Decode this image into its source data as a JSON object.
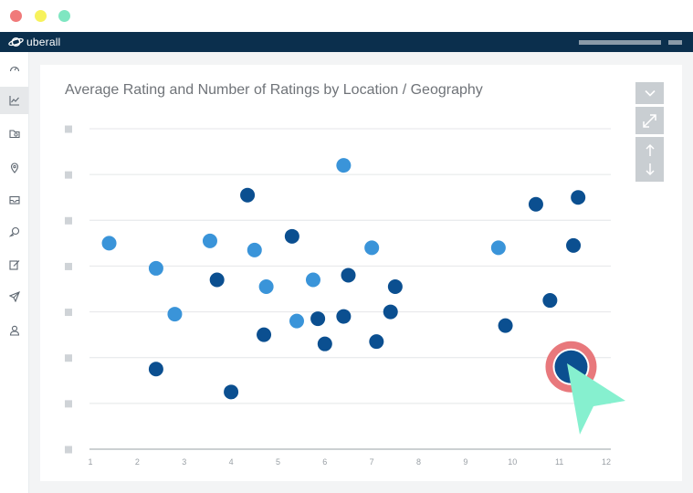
{
  "app": {
    "brand": "uberall",
    "window_dots": [
      "red",
      "yellow",
      "green"
    ],
    "colors": {
      "topbar": "#0b2f4d",
      "series_light": "#3a94d9",
      "series_dark": "#0b4f90",
      "highlight_ring": "#e8787c",
      "cursor": "#86f0cf"
    }
  },
  "sidebar": {
    "items": [
      {
        "icon": "dashboard-icon",
        "active": false
      },
      {
        "icon": "analytics-icon",
        "active": true
      },
      {
        "icon": "location-folder-icon",
        "active": false
      },
      {
        "icon": "map-pin-icon",
        "active": false
      },
      {
        "icon": "inbox-icon",
        "active": false
      },
      {
        "icon": "chat-icon",
        "active": false
      },
      {
        "icon": "edit-icon",
        "active": false
      },
      {
        "icon": "send-icon",
        "active": false
      },
      {
        "icon": "user-icon",
        "active": false
      }
    ]
  },
  "toolbar": {
    "buttons": [
      {
        "icon": "chevron-down-icon"
      },
      {
        "icon": "expand-icon"
      },
      {
        "icon": "resize-vertical-icon"
      }
    ]
  },
  "chart_data": {
    "type": "scatter",
    "title": "Average Rating and Number of Ratings by Location / Geography",
    "xlabel": "",
    "ylabel": "",
    "xlim": [
      1,
      12
    ],
    "x_ticks": [
      "1",
      "2",
      "3",
      "4",
      "5",
      "6",
      "7",
      "8",
      "9",
      "10",
      "11",
      "12"
    ],
    "ylim": [
      0,
      7
    ],
    "y_ticks": 8,
    "grid": true,
    "series": [
      {
        "color": "#3a94d9",
        "points": [
          {
            "x": 1.4,
            "y": 4.5
          },
          {
            "x": 2.4,
            "y": 3.95
          },
          {
            "x": 2.8,
            "y": 2.95
          },
          {
            "x": 3.55,
            "y": 4.55
          },
          {
            "x": 4.5,
            "y": 4.35
          },
          {
            "x": 4.75,
            "y": 3.55
          },
          {
            "x": 5.4,
            "y": 2.8
          },
          {
            "x": 5.75,
            "y": 3.7
          },
          {
            "x": 6.4,
            "y": 6.2
          },
          {
            "x": 7.0,
            "y": 4.4
          },
          {
            "x": 9.7,
            "y": 4.4
          }
        ]
      },
      {
        "color": "#0b4f90",
        "points": [
          {
            "x": 2.4,
            "y": 1.75
          },
          {
            "x": 3.7,
            "y": 3.7
          },
          {
            "x": 4.0,
            "y": 1.25
          },
          {
            "x": 4.35,
            "y": 5.55
          },
          {
            "x": 4.7,
            "y": 2.5
          },
          {
            "x": 5.3,
            "y": 4.65
          },
          {
            "x": 5.85,
            "y": 2.85
          },
          {
            "x": 6.0,
            "y": 2.3
          },
          {
            "x": 6.4,
            "y": 2.9
          },
          {
            "x": 6.5,
            "y": 3.8
          },
          {
            "x": 7.1,
            "y": 2.35
          },
          {
            "x": 7.4,
            "y": 3.0
          },
          {
            "x": 7.5,
            "y": 3.55
          },
          {
            "x": 9.85,
            "y": 2.7
          },
          {
            "x": 10.5,
            "y": 5.35
          },
          {
            "x": 10.8,
            "y": 3.25
          },
          {
            "x": 11.3,
            "y": 4.45
          },
          {
            "x": 11.4,
            "y": 5.5
          }
        ]
      }
    ],
    "highlighted_point": {
      "x": 11.25,
      "y": 1.8
    }
  }
}
